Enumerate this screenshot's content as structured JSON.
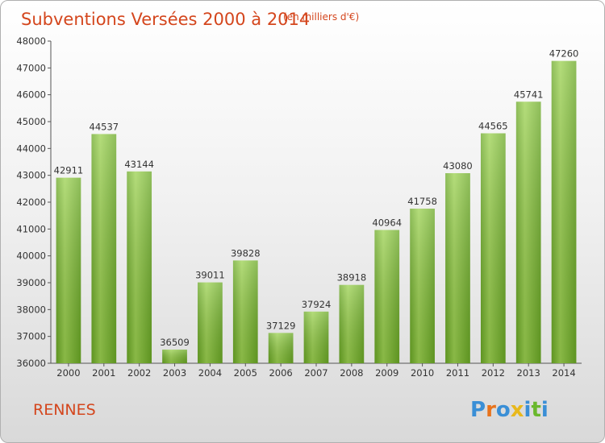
{
  "chart_data": {
    "type": "bar",
    "title": "Subventions Versées 2000 à 2014",
    "subtitle": "(en milliers d'€)",
    "categories": [
      "2000",
      "2001",
      "2002",
      "2003",
      "2004",
      "2005",
      "2006",
      "2007",
      "2008",
      "2009",
      "2010",
      "2011",
      "2012",
      "2013",
      "2014"
    ],
    "values": [
      42911,
      44537,
      43144,
      36509,
      39011,
      39828,
      37129,
      37924,
      38918,
      40964,
      41758,
      43080,
      44565,
      45741,
      47260
    ],
    "ylim": [
      36000,
      48000
    ],
    "yticks": [
      36000,
      37000,
      38000,
      39000,
      40000,
      41000,
      42000,
      43000,
      44000,
      45000,
      46000,
      47000,
      48000
    ],
    "grid": false,
    "legend": "none",
    "bar_color": "#8cc63f",
    "bar_color_dark": "#5e9c1a"
  },
  "city": "RENNES",
  "logo": {
    "letters": [
      "P",
      "r",
      "o",
      "x",
      "i",
      "t",
      "i"
    ],
    "colors": [
      "#3a8fd6",
      "#e8731c",
      "#3a8fd6",
      "#e8b81c",
      "#3a8fd6",
      "#6ab82d",
      "#3a8fd6"
    ]
  }
}
